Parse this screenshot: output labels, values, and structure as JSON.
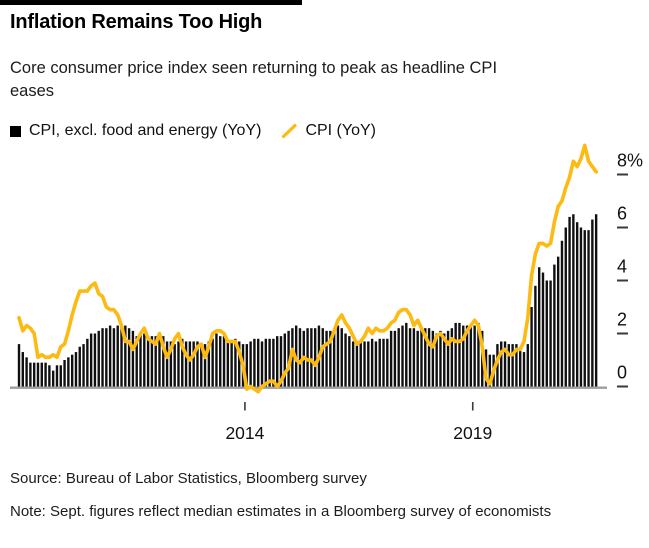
{
  "header": {
    "title": "Inflation Remains Too High",
    "subtitle": "Core consumer price index seen returning to peak as headline CPI eases",
    "subtitle_lines": [
      "Core consumer price index seen returning to peak as headline CPI",
      "eases"
    ]
  },
  "legend": [
    {
      "label": "CPI, excl. food and energy (YoY)",
      "swatch": "square",
      "color": "#000000"
    },
    {
      "label": "CPI (YoY)",
      "swatch": "slash",
      "color": "#fdba12"
    }
  ],
  "colors": {
    "bar": "#101010",
    "line": "#fdba12",
    "axis_baseline": "#9e9e9e",
    "tick": "#3a3a3a",
    "axis_text": "#111111",
    "background": "#ffffff"
  },
  "footer": {
    "source": "Source: Bureau of Labor Statistics, Bloomberg survey",
    "note": "Note: Sept. figures reflect median estimates in a Bloomberg survey of economists"
  },
  "chart_data": {
    "type": "bar+line",
    "x_start": "2010-01",
    "x_end": "2022-09",
    "x_frequency": "monthly",
    "ylim": [
      -0.5,
      9.5
    ],
    "y_ticks": [
      {
        "value": 0,
        "label": "0"
      },
      {
        "value": 2,
        "label": "2"
      },
      {
        "value": 4,
        "label": "4"
      },
      {
        "value": 6,
        "label": "6"
      },
      {
        "value": 8,
        "label": "8%"
      }
    ],
    "x_ticks": [
      {
        "year": 2014,
        "label": "2014"
      },
      {
        "year": 2019,
        "label": "2019"
      }
    ],
    "grid": false,
    "legend_position": "top-left",
    "series": [
      {
        "name": "CPI, excl. food and energy (YoY)",
        "type": "bar",
        "values": [
          1.6,
          1.3,
          1.1,
          0.9,
          0.9,
          0.9,
          0.9,
          0.9,
          0.8,
          0.6,
          0.8,
          0.8,
          1.0,
          1.1,
          1.2,
          1.3,
          1.5,
          1.6,
          1.8,
          2.0,
          2.0,
          2.1,
          2.2,
          2.2,
          2.3,
          2.2,
          2.3,
          2.3,
          2.3,
          2.2,
          2.1,
          1.9,
          2.0,
          2.0,
          1.9,
          1.9,
          1.9,
          2.0,
          1.9,
          1.7,
          1.7,
          1.6,
          1.7,
          1.8,
          1.7,
          1.7,
          1.7,
          1.7,
          1.6,
          1.6,
          1.7,
          1.8,
          2.0,
          1.9,
          1.9,
          1.7,
          1.7,
          1.8,
          1.7,
          1.6,
          1.6,
          1.7,
          1.8,
          1.8,
          1.7,
          1.8,
          1.8,
          1.8,
          1.9,
          1.9,
          2.0,
          2.1,
          2.2,
          2.3,
          2.2,
          2.1,
          2.2,
          2.2,
          2.2,
          2.3,
          2.2,
          2.1,
          2.1,
          2.2,
          2.3,
          2.2,
          2.0,
          1.9,
          1.7,
          1.7,
          1.7,
          1.7,
          1.7,
          1.8,
          1.7,
          1.8,
          1.8,
          1.8,
          2.1,
          2.1,
          2.2,
          2.3,
          2.4,
          2.2,
          2.2,
          2.1,
          2.2,
          2.2,
          2.2,
          2.1,
          2.0,
          2.1,
          2.0,
          2.1,
          2.2,
          2.4,
          2.4,
          2.3,
          2.3,
          2.3,
          2.3,
          2.4,
          2.1,
          1.4,
          1.2,
          1.2,
          1.6,
          1.7,
          1.7,
          1.6,
          1.6,
          1.6,
          1.4,
          1.3,
          1.6,
          3.0,
          3.8,
          4.5,
          4.3,
          4.0,
          4.0,
          4.6,
          4.9,
          5.5,
          6.0,
          6.4,
          6.5,
          6.2,
          6.0,
          5.9,
          5.9,
          6.3,
          6.5
        ]
      },
      {
        "name": "CPI (YoY)",
        "type": "line",
        "values": [
          2.6,
          2.1,
          2.3,
          2.2,
          2.0,
          1.1,
          1.2,
          1.1,
          1.1,
          1.2,
          1.1,
          1.5,
          1.6,
          2.1,
          2.7,
          3.2,
          3.6,
          3.6,
          3.6,
          3.8,
          3.9,
          3.5,
          3.4,
          3.0,
          2.9,
          2.9,
          2.7,
          2.3,
          1.7,
          1.7,
          1.4,
          1.7,
          2.0,
          2.2,
          1.8,
          1.7,
          1.6,
          2.0,
          1.5,
          1.1,
          1.4,
          1.8,
          2.0,
          1.5,
          1.2,
          1.0,
          1.2,
          1.5,
          1.6,
          1.1,
          1.5,
          2.0,
          2.1,
          2.1,
          2.0,
          1.7,
          1.7,
          1.7,
          1.3,
          0.8,
          -0.1,
          0.0,
          -0.1,
          -0.2,
          0.0,
          0.1,
          0.2,
          0.2,
          0.0,
          0.2,
          0.5,
          0.7,
          1.4,
          1.0,
          0.9,
          1.1,
          1.0,
          1.0,
          0.8,
          1.1,
          1.5,
          1.6,
          1.7,
          2.1,
          2.5,
          2.7,
          2.4,
          2.2,
          1.9,
          1.6,
          1.7,
          1.9,
          2.2,
          2.0,
          2.2,
          2.1,
          2.1,
          2.2,
          2.4,
          2.5,
          2.8,
          2.9,
          2.9,
          2.7,
          2.3,
          2.5,
          2.2,
          1.9,
          1.6,
          1.5,
          1.9,
          2.0,
          1.8,
          1.6,
          1.8,
          1.7,
          1.7,
          1.8,
          2.1,
          2.3,
          2.5,
          2.3,
          1.5,
          0.3,
          0.1,
          0.6,
          1.0,
          1.3,
          1.4,
          1.2,
          1.2,
          1.4,
          1.4,
          1.7,
          2.6,
          4.2,
          5.0,
          5.4,
          5.4,
          5.3,
          5.4,
          6.2,
          6.8,
          7.0,
          7.5,
          7.9,
          8.5,
          8.3,
          8.6,
          9.1,
          8.5,
          8.3,
          8.1
        ]
      }
    ]
  }
}
